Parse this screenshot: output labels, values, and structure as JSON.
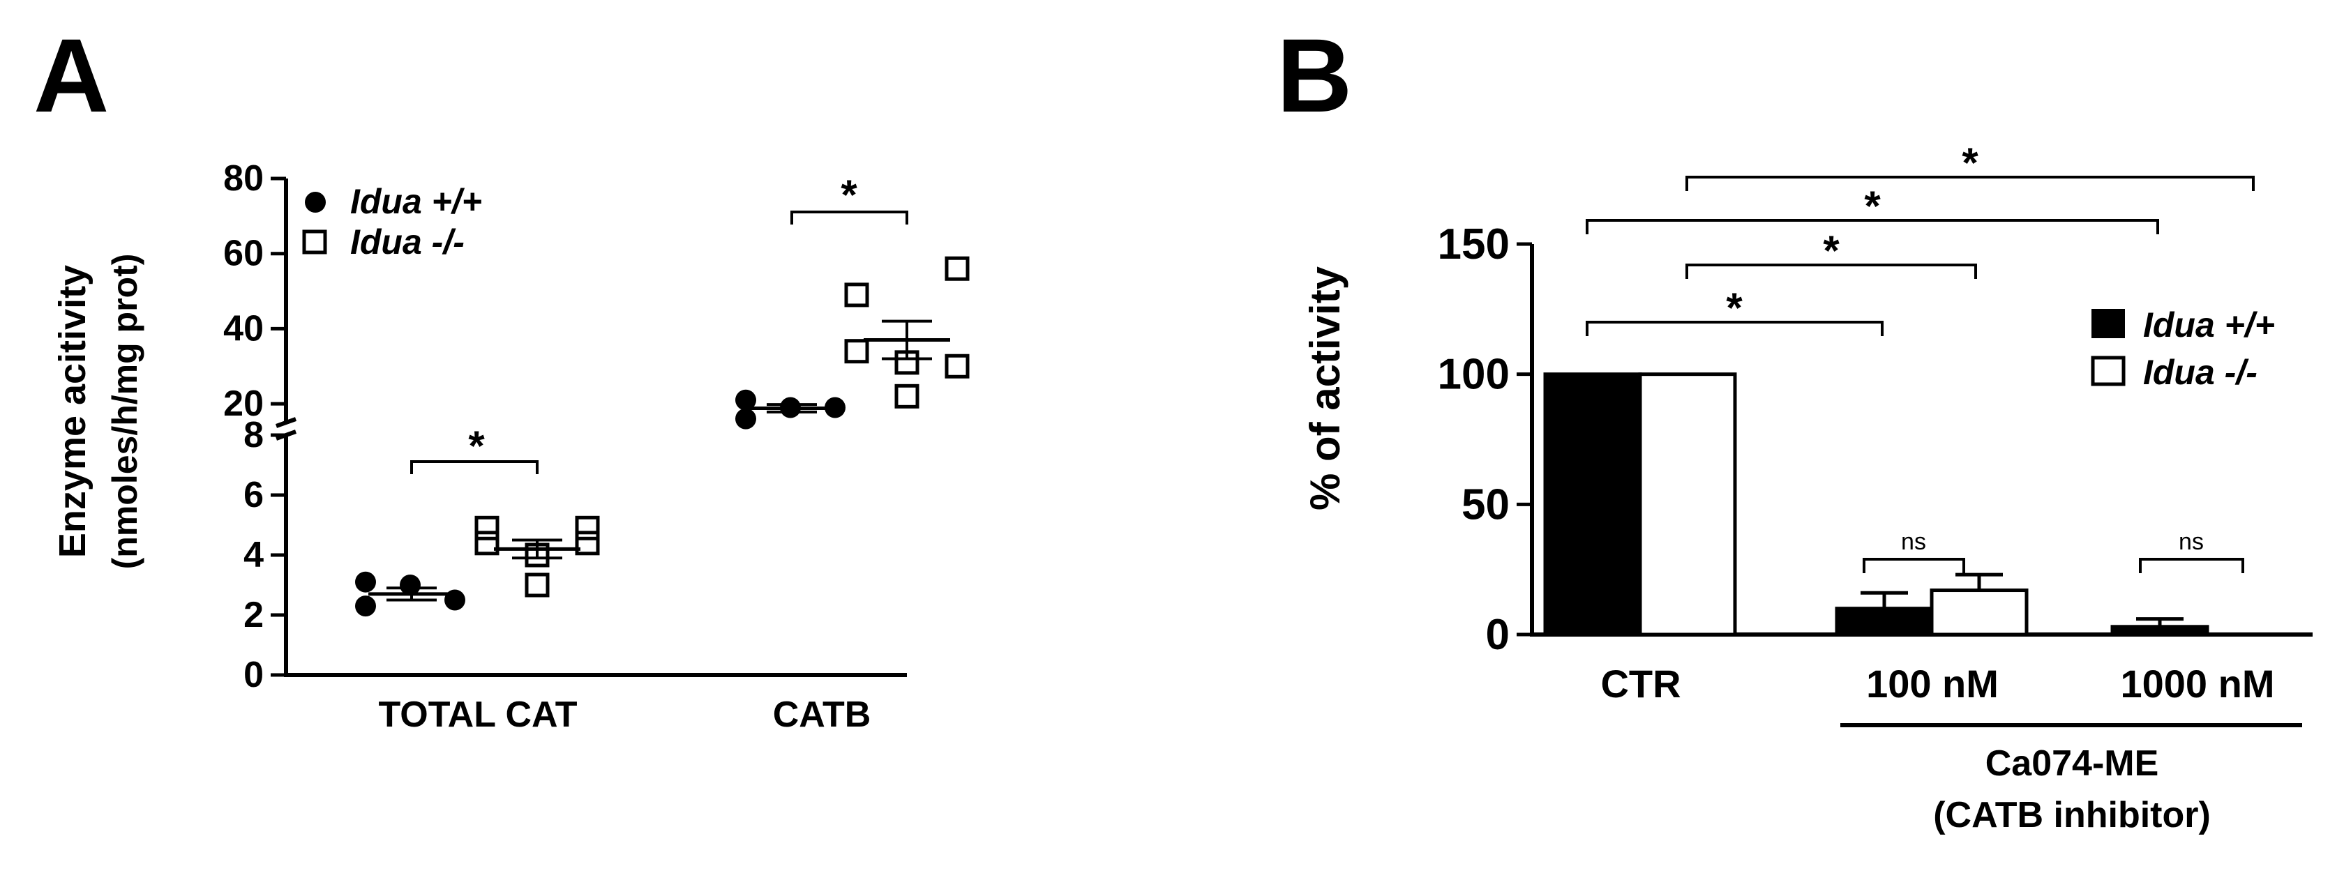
{
  "panel_labels": {
    "a": "A",
    "b": "B"
  },
  "chart_data": [
    {
      "type": "scatter",
      "panel": "A",
      "ylabel_line1": "Enzyme acitivity",
      "ylabel_line2": "(nmoles/h/mg prot)",
      "categories": [
        "TOTAL CAT",
        "CATB"
      ],
      "broken_y_axis": true,
      "lower_segment": {
        "ylim": [
          0,
          8
        ],
        "ticks": [
          "0",
          "2",
          "4",
          "6",
          "8"
        ]
      },
      "upper_segment": {
        "ylim": [
          15,
          80
        ],
        "ticks": [
          "20",
          "40",
          "60",
          "80"
        ]
      },
      "legend": {
        "placement": "top-left",
        "entries": [
          {
            "name": "Idua +/+",
            "marker": "filled-circle"
          },
          {
            "name": "Idua -/-",
            "marker": "open-square"
          }
        ]
      },
      "series": [
        {
          "name": "Idua +/+",
          "marker": "filled-circle",
          "groups": [
            {
              "category": "TOTAL CAT",
              "values": [
                3.1,
                2.3,
                3.0,
                2.5
              ],
              "mean": 2.7,
              "sem": 0.2
            },
            {
              "category": "CATB",
              "values": [
                16,
                21,
                19,
                19
              ],
              "mean": 18.8,
              "sem": 1.0
            }
          ]
        },
        {
          "name": "Idua -/-",
          "marker": "open-square",
          "groups": [
            {
              "category": "TOTAL CAT",
              "values": [
                4.9,
                4.4,
                4.0,
                3.0,
                4.9,
                4.4
              ],
              "mean": 4.2,
              "sem": 0.3
            },
            {
              "category": "CATB",
              "values": [
                34,
                49,
                31,
                22,
                56,
                30
              ],
              "mean": 37,
              "sem": 5.0
            }
          ]
        }
      ],
      "significance": [
        {
          "category": "TOTAL CAT",
          "label": "*"
        },
        {
          "category": "CATB",
          "label": "*"
        }
      ]
    },
    {
      "type": "bar",
      "panel": "B",
      "ylabel": "% of activity",
      "ylim": [
        0,
        150
      ],
      "yticks": [
        "0",
        "50",
        "100",
        "150"
      ],
      "categories": [
        "CTR",
        "100 nM",
        "1000 nM"
      ],
      "group_label_line1": "Ca074-ME",
      "group_label_line2": "(CATB inhibitor)",
      "legend": {
        "placement": "right",
        "entries": [
          {
            "name": "Idua +/+",
            "color": "#000000"
          },
          {
            "name": "Idua -/-",
            "color": "#ffffff"
          }
        ]
      },
      "series": [
        {
          "name": "Idua +/+",
          "color": "#000000",
          "values": [
            100,
            10,
            3
          ],
          "errors": [
            0,
            6,
            3
          ]
        },
        {
          "name": "Idua -/-",
          "color": "#ffffff",
          "values": [
            100,
            17,
            0
          ],
          "errors": [
            0,
            6,
            0
          ]
        }
      ],
      "significance": [
        {
          "label": "*",
          "from": "CTR",
          "to": "100 nM Idua +/+"
        },
        {
          "label": "*",
          "from": "CTR Idua -/-",
          "to": "100 nM Idua -/-"
        },
        {
          "label": "*",
          "from": "CTR",
          "to": "1000 nM Idua +/+"
        },
        {
          "label": "*",
          "from": "CTR Idua -/-",
          "to": "1000 nM Idua -/-"
        },
        {
          "label": "ns",
          "from": "100 nM Idua +/+",
          "to": "100 nM Idua -/-"
        },
        {
          "label": "ns",
          "from": "1000 nM Idua +/+",
          "to": "1000 nM Idua -/-"
        }
      ]
    }
  ]
}
